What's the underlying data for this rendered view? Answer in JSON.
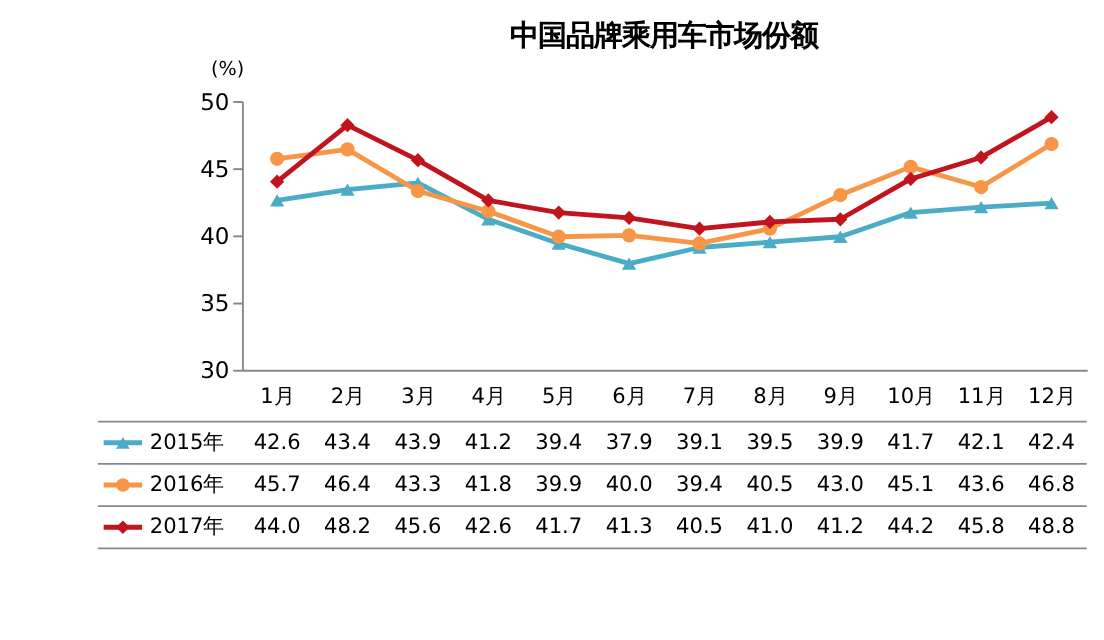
{
  "chart_data": {
    "type": "line",
    "title": "中国品牌乘用车市场份额",
    "ylabel": "(%)",
    "categories": [
      "1月",
      "2月",
      "3月",
      "4月",
      "5月",
      "6月",
      "7月",
      "8月",
      "9月",
      "10月",
      "11月",
      "12月"
    ],
    "ylim": [
      30,
      50
    ],
    "yticks": [
      30,
      35,
      40,
      45,
      50
    ],
    "legend": "bottom",
    "series": [
      {
        "name": "2015年",
        "color": "#4bacc6",
        "marker": "triangle",
        "values": [
          42.6,
          43.4,
          43.9,
          41.2,
          39.4,
          37.9,
          39.1,
          39.5,
          39.9,
          41.7,
          42.1,
          42.4
        ],
        "value_labels": [
          "42.6",
          "43.4",
          "43.9",
          "41.2",
          "39.4",
          "37.9",
          "39.1",
          "39.5",
          "39.9",
          "41.7",
          "42.1",
          "42.4"
        ]
      },
      {
        "name": "2016年",
        "color": "#f79646",
        "marker": "circle",
        "values": [
          45.7,
          46.4,
          43.3,
          41.8,
          39.9,
          40.0,
          39.4,
          40.5,
          43.0,
          45.1,
          43.6,
          46.8
        ],
        "value_labels": [
          "45.7",
          "46.4",
          "43.3",
          "41.8",
          "39.9",
          "40.0",
          "39.4",
          "40.5",
          "43.0",
          "45.1",
          "43.6",
          "46.8"
        ]
      },
      {
        "name": "2017年",
        "color": "#c0141e",
        "marker": "diamond",
        "values": [
          44.0,
          48.2,
          45.6,
          42.6,
          41.7,
          41.3,
          40.5,
          41.0,
          41.2,
          44.2,
          45.8,
          48.8
        ],
        "value_labels": [
          "44.0",
          "48.2",
          "45.6",
          "42.6",
          "41.7",
          "41.3",
          "40.5",
          "41.0",
          "41.2",
          "44.2",
          "45.8",
          "48.8"
        ]
      }
    ]
  }
}
